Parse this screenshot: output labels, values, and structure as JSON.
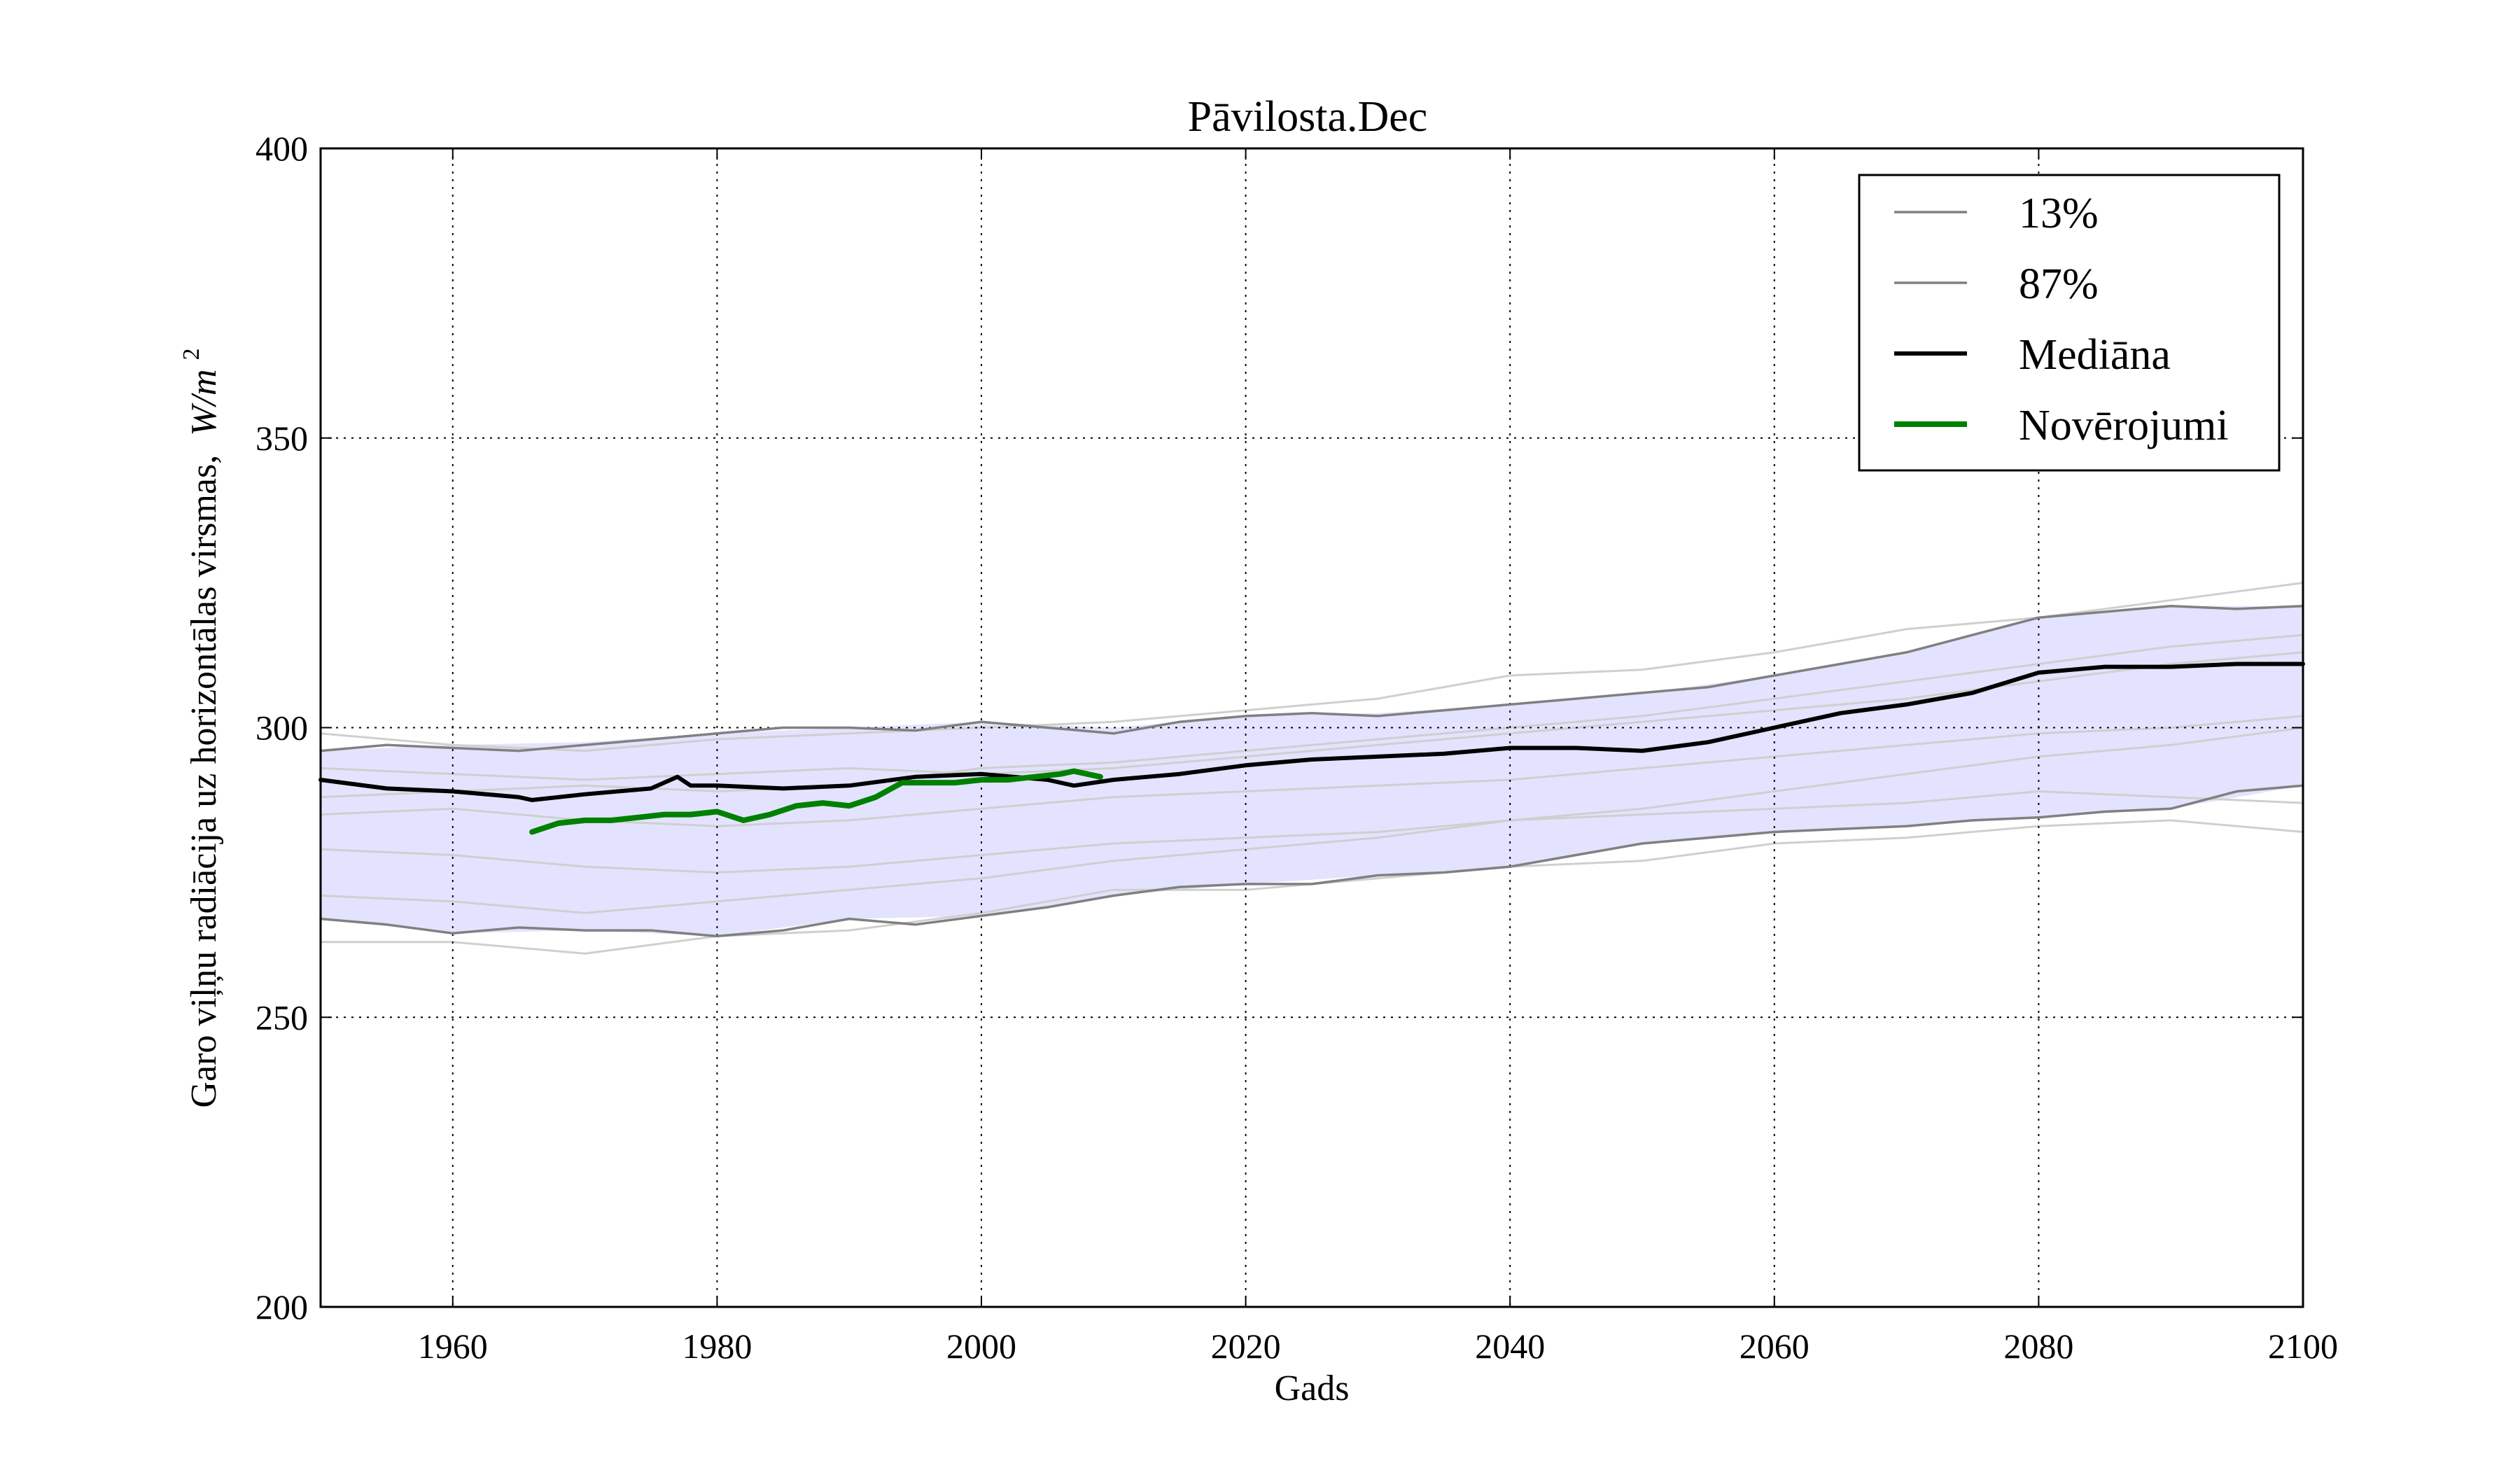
{
  "chart_data": {
    "type": "line",
    "title": "Pāvilosta.Dec",
    "xlabel": "Gads",
    "ylabel": "Garo viļņu radiācija uz horizontālas virsmas, W/m²",
    "ylabel_text": "Garo viļņu radiācija uz horizontālas virsmas,",
    "ylabel_unit_base": "W/m",
    "ylabel_unit_exp": "2",
    "xlim": [
      1950,
      2100
    ],
    "ylim": [
      200,
      400
    ],
    "xticks": [
      1960,
      1980,
      2000,
      2020,
      2040,
      2060,
      2080,
      2100
    ],
    "yticks": [
      200,
      250,
      300,
      350,
      400
    ],
    "grid": true,
    "legend_position": "top-right",
    "band": {
      "fill_color": "#e3e3ff",
      "x": [
        1950,
        1960,
        1970,
        1980,
        1990,
        2000,
        2010,
        2020,
        2030,
        2040,
        2050,
        2060,
        2070,
        2080,
        2090,
        2100
      ],
      "lower": [
        267,
        264.5,
        265,
        264,
        267,
        267.5,
        271,
        273,
        274.5,
        276,
        280,
        282,
        283,
        284.5,
        286,
        290
      ],
      "upper": [
        296,
        297,
        297.5,
        299,
        300,
        301,
        300,
        302,
        302.5,
        304,
        306,
        309,
        313,
        319,
        321,
        321
      ]
    },
    "ensemble_color": "#cfcfcf",
    "ensemble": [
      {
        "x": [
          1950,
          1960,
          1970,
          1980,
          1990,
          2000,
          2010,
          2020,
          2030,
          2040,
          2050,
          2060,
          2070,
          2080,
          2090,
          2100
        ],
        "values": [
          299,
          297,
          296,
          298,
          299,
          300,
          301,
          303,
          305,
          309,
          310,
          313,
          317,
          319,
          322,
          325
        ]
      },
      {
        "x": [
          1950,
          1960,
          1970,
          1980,
          1990,
          2000,
          2010,
          2020,
          2030,
          2040,
          2050,
          2060,
          2070,
          2080,
          2090,
          2100
        ],
        "values": [
          263,
          263,
          261,
          264,
          265,
          268,
          272,
          272,
          274,
          276,
          277,
          280,
          281,
          283,
          284,
          282
        ]
      },
      {
        "x": [
          1950,
          1960,
          1970,
          1980,
          1990,
          2000,
          2010,
          2020,
          2030,
          2040,
          2050,
          2060,
          2070,
          2080,
          2090,
          2100
        ],
        "values": [
          271,
          270,
          268,
          270,
          272,
          274,
          277,
          279,
          281,
          284,
          286,
          289,
          292,
          295,
          297,
          300
        ]
      },
      {
        "x": [
          1950,
          1960,
          1970,
          1980,
          1990,
          2000,
          2010,
          2020,
          2030,
          2040,
          2050,
          2060,
          2070,
          2080,
          2090,
          2100
        ],
        "values": [
          285,
          286,
          284,
          283,
          284,
          286,
          288,
          289,
          290,
          291,
          293,
          295,
          297,
          299,
          300,
          302
        ]
      },
      {
        "x": [
          1950,
          1960,
          1970,
          1980,
          1990,
          2000,
          2010,
          2020,
          2030,
          2040,
          2050,
          2060,
          2070,
          2080,
          2090,
          2100
        ],
        "values": [
          293,
          292,
          291,
          292,
          293,
          292,
          293,
          295,
          297,
          299,
          301,
          303,
          305,
          308,
          311,
          313
        ]
      },
      {
        "x": [
          1950,
          1960,
          1970,
          1980,
          1990,
          2000,
          2010,
          2020,
          2030,
          2040,
          2050,
          2060,
          2070,
          2080,
          2090,
          2100
        ],
        "values": [
          279,
          278,
          276,
          275,
          276,
          278,
          280,
          281,
          282,
          284,
          285,
          286,
          287,
          289,
          288,
          287
        ]
      },
      {
        "x": [
          1950,
          1960,
          1970,
          1980,
          1990,
          2000,
          2010,
          2020,
          2030,
          2040,
          2050,
          2060,
          2070,
          2080,
          2090,
          2100
        ],
        "values": [
          288,
          289,
          290,
          289,
          290,
          293,
          294,
          296,
          298,
          300,
          302,
          305,
          308,
          311,
          314,
          316
        ]
      }
    ],
    "series": [
      {
        "name": "13%",
        "color": "#808080",
        "x": [
          1950,
          1955,
          1960,
          1965,
          1970,
          1975,
          1980,
          1985,
          1990,
          1995,
          2000,
          2005,
          2010,
          2015,
          2020,
          2025,
          2030,
          2035,
          2040,
          2045,
          2050,
          2055,
          2060,
          2065,
          2070,
          2075,
          2080,
          2085,
          2090,
          2095,
          2100
        ],
        "values": [
          267,
          266,
          264.5,
          265.5,
          265,
          265,
          264,
          265,
          267,
          266,
          267.5,
          269,
          271,
          272.5,
          273,
          273,
          274.5,
          275,
          276,
          278,
          280,
          281,
          282,
          282.5,
          283,
          284,
          284.5,
          285.5,
          286,
          289,
          290
        ]
      },
      {
        "name": "87%",
        "color": "#808080",
        "x": [
          1950,
          1955,
          1960,
          1965,
          1970,
          1975,
          1980,
          1985,
          1990,
          1995,
          2000,
          2005,
          2010,
          2015,
          2020,
          2025,
          2030,
          2035,
          2040,
          2045,
          2050,
          2055,
          2060,
          2065,
          2070,
          2075,
          2080,
          2085,
          2090,
          2095,
          2100
        ],
        "values": [
          296,
          297,
          296.5,
          296,
          297,
          298,
          299,
          300,
          300,
          299.5,
          301,
          300,
          299,
          301,
          302,
          302.5,
          302,
          303,
          304,
          305,
          306,
          307,
          309,
          311,
          313,
          316,
          319,
          320,
          321,
          320.5,
          321
        ]
      },
      {
        "name": "Mediāna",
        "color": "#000000",
        "x": [
          1950,
          1955,
          1960,
          1965,
          1966,
          1970,
          1975,
          1977,
          1978,
          1980,
          1985,
          1990,
          1995,
          2000,
          2005,
          2007,
          2010,
          2015,
          2020,
          2025,
          2030,
          2035,
          2040,
          2045,
          2050,
          2055,
          2060,
          2065,
          2070,
          2075,
          2080,
          2085,
          2090,
          2095,
          2100
        ],
        "values": [
          291,
          289.5,
          289,
          288,
          287.5,
          288.5,
          289.5,
          291.5,
          290,
          290,
          289.5,
          290,
          291.5,
          292,
          291,
          290,
          291,
          292,
          293.5,
          294.5,
          295,
          295.5,
          296.5,
          296.5,
          296,
          297.5,
          300,
          302.5,
          304,
          306,
          309.5,
          310.5,
          310.5,
          311,
          311
        ]
      },
      {
        "name": "Novērojumi",
        "color": "#008000",
        "x": [
          1966,
          1968,
          1970,
          1972,
          1974,
          1976,
          1978,
          1980,
          1982,
          1984,
          1986,
          1988,
          1990,
          1992,
          1994,
          1996,
          1998,
          2000,
          2002,
          2004,
          2006,
          2007,
          2009
        ],
        "values": [
          282,
          283.5,
          284,
          284,
          284.5,
          285,
          285,
          285.5,
          284,
          285,
          286.5,
          287,
          286.5,
          288,
          290.5,
          290.5,
          290.5,
          291,
          291,
          291.5,
          292,
          292.5,
          291.5
        ]
      }
    ]
  }
}
